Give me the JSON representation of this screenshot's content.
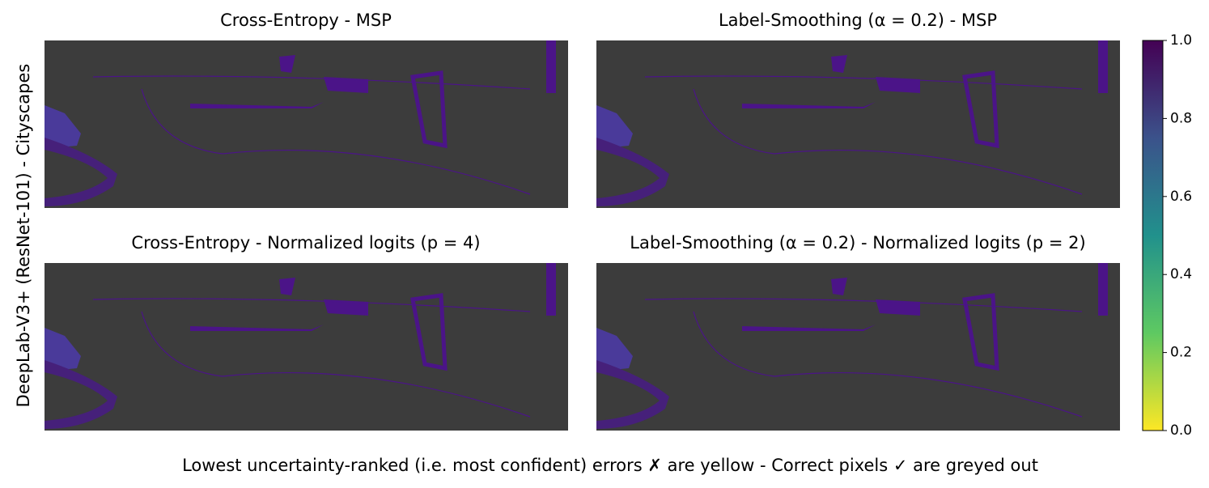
{
  "figure": {
    "ylabel": "DeepLab-V3+ (ResNet-101) - Cityscapes",
    "caption": "Lowest uncertainty-ranked (i.e. most confident) errors ✗ are yellow - Correct pixels ✓ are greyed out",
    "panels": [
      {
        "title": "Cross-Entropy - MSP"
      },
      {
        "title": "Label-Smoothing (α = 0.2) - MSP"
      },
      {
        "title": "Cross-Entropy - Normalized logits (p = 4)"
      },
      {
        "title": "Label-Smoothing (α = 0.2) - Normalized logits (p = 2)"
      }
    ],
    "colorbar": {
      "lim": [
        0,
        1
      ],
      "ticks": [
        {
          "value": 0,
          "label": "0.0"
        },
        {
          "value": 0.2,
          "label": "0.2"
        },
        {
          "value": 0.4,
          "label": "0.4"
        },
        {
          "value": 0.6,
          "label": "0.6"
        },
        {
          "value": 0.8,
          "label": "0.8"
        },
        {
          "value": 1,
          "label": "1.0"
        }
      ]
    }
  }
}
